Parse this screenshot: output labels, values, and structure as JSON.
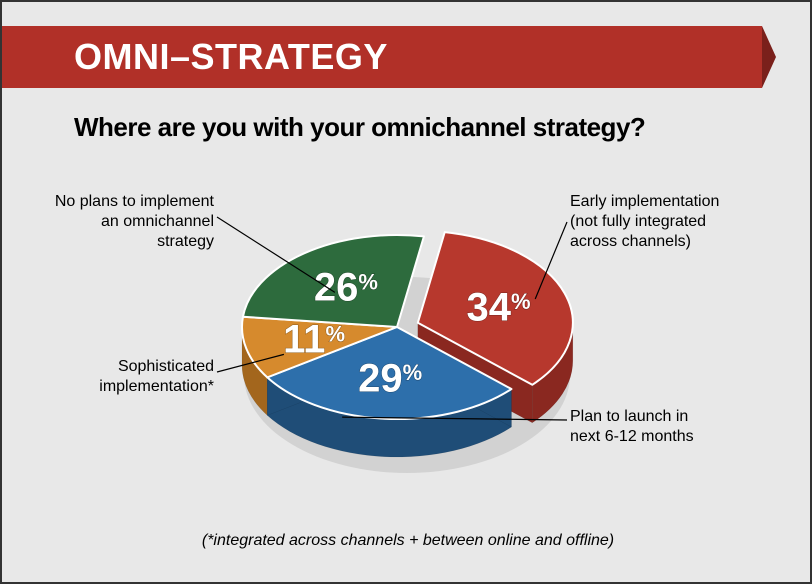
{
  "header": {
    "title": "OMNI–STRATEGY"
  },
  "question": "Where are you with your omnichannel strategy?",
  "chart": {
    "type": "pie",
    "background_color": "#e8e8e8",
    "title_fontsize": 36,
    "question_fontsize": 26,
    "label_fontsize": 16,
    "pct_fontsize": 40,
    "slices": [
      {
        "label_lines": [
          "Early implementation",
          "(not fully integrated",
          "across channels)"
        ],
        "value": 34,
        "color_top": "#b7382d",
        "color_side": "#8a2820",
        "exploded": true
      },
      {
        "label_lines": [
          "Plan to launch in",
          "next 6-12 months"
        ],
        "value": 29,
        "color_top": "#2d6fab",
        "color_side": "#1f4d77",
        "exploded": false
      },
      {
        "label_lines": [
          "Sophisticated",
          "implementation*"
        ],
        "value": 11,
        "color_top": "#d68a2d",
        "color_side": "#a3661d",
        "exploded": false
      },
      {
        "label_lines": [
          "No plans to implement",
          "an omnichannel",
          "strategy"
        ],
        "value": 26,
        "color_top": "#2d6b3d",
        "color_side": "#1f4a2a",
        "exploded": false
      }
    ]
  },
  "footnote": "(*integrated across channels + between online and offline)"
}
